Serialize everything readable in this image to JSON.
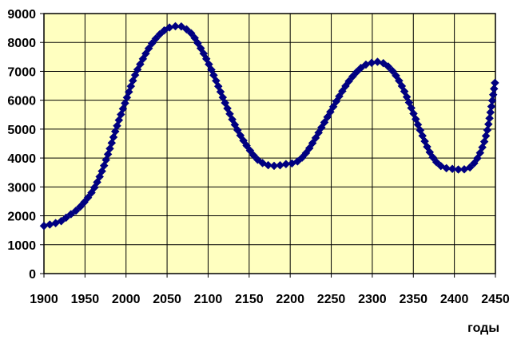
{
  "chart_data": {
    "type": "line",
    "xlabel": "годы",
    "ylabel": "",
    "xlim": [
      1900,
      2450
    ],
    "ylim": [
      0,
      9000
    ],
    "x_ticks": [
      "1900",
      "1950",
      "2000",
      "2050",
      "2100",
      "2150",
      "2200",
      "2250",
      "2300",
      "2350",
      "2400",
      "2450"
    ],
    "y_ticks": [
      "0",
      "1000",
      "2000",
      "3000",
      "4000",
      "5000",
      "6000",
      "7000",
      "8000",
      "9000"
    ],
    "grid": true,
    "legend": "none",
    "colors": {
      "plot_bg": "#ffffc0",
      "grid": "#000000",
      "series": "#000080"
    },
    "series": [
      {
        "marker": "diamond",
        "x": [
          1900,
          1910,
          1920,
          1930,
          1940,
          1950,
          1960,
          1970,
          1980,
          1990,
          2000,
          2010,
          2020,
          2030,
          2040,
          2050,
          2060,
          2065,
          2070,
          2080,
          2090,
          2100,
          2110,
          2120,
          2130,
          2140,
          2150,
          2160,
          2170,
          2180,
          2190,
          2195,
          2200,
          2210,
          2220,
          2230,
          2240,
          2250,
          2260,
          2270,
          2280,
          2290,
          2300,
          2310,
          2320,
          2330,
          2340,
          2350,
          2360,
          2370,
          2380,
          2390,
          2400,
          2410,
          2420,
          2430,
          2440,
          2450
        ],
        "y": [
          1650,
          1720,
          1800,
          2000,
          2200,
          2500,
          2900,
          3500,
          4300,
          5200,
          6000,
          6800,
          7400,
          7900,
          8250,
          8480,
          8560,
          8560,
          8520,
          8300,
          7850,
          7300,
          6650,
          5950,
          5300,
          4750,
          4300,
          3950,
          3780,
          3730,
          3760,
          3790,
          3800,
          3900,
          4200,
          4650,
          5150,
          5650,
          6150,
          6600,
          6950,
          7200,
          7300,
          7320,
          7150,
          6800,
          6250,
          5550,
          4850,
          4200,
          3800,
          3650,
          3620,
          3600,
          3700,
          4100,
          4950,
          6700
        ]
      }
    ]
  }
}
